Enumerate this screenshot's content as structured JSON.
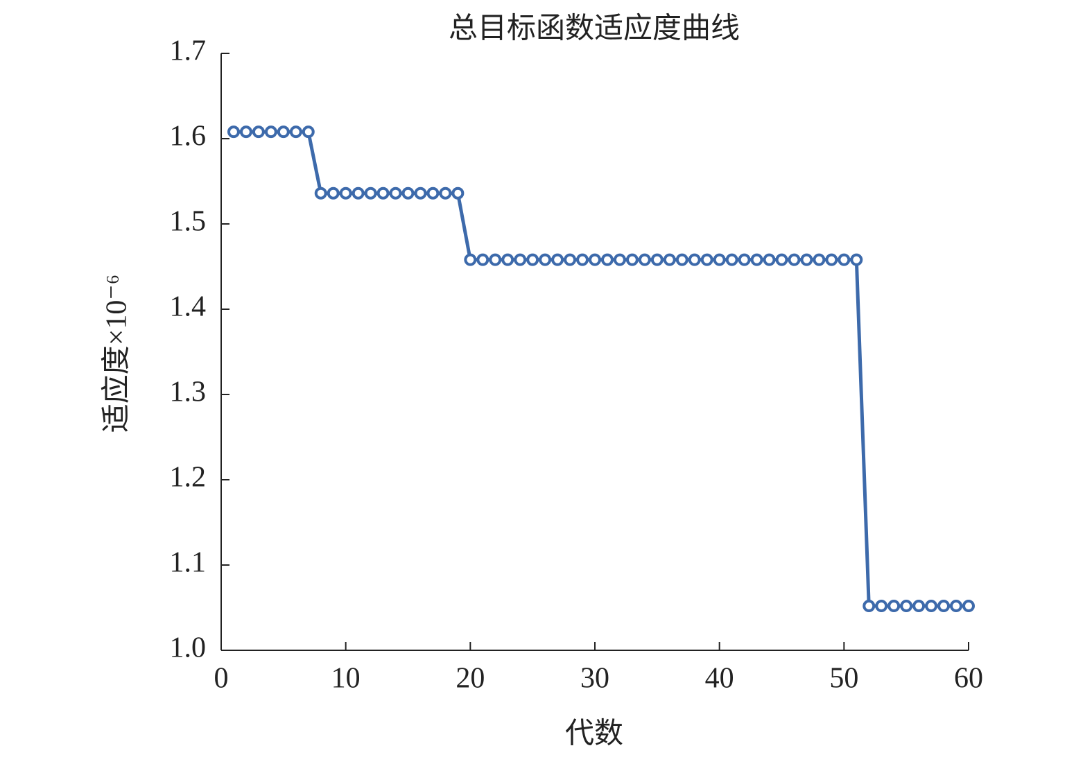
{
  "chart_data": {
    "type": "line",
    "title": "总目标函数适应度曲线",
    "x_label": "代数",
    "y_label": "适应度×10⁻⁶",
    "x": [
      1,
      2,
      3,
      4,
      5,
      6,
      7,
      8,
      9,
      10,
      11,
      12,
      13,
      14,
      15,
      16,
      17,
      18,
      19,
      20,
      21,
      22,
      23,
      24,
      25,
      26,
      27,
      28,
      29,
      30,
      31,
      32,
      33,
      34,
      35,
      36,
      37,
      38,
      39,
      40,
      41,
      42,
      43,
      44,
      45,
      46,
      47,
      48,
      49,
      50,
      51,
      52,
      53,
      54,
      55,
      56,
      57,
      58,
      59,
      60
    ],
    "series": [
      {
        "color": "#3d6aab",
        "values": [
          1.608,
          1.608,
          1.608,
          1.608,
          1.608,
          1.608,
          1.608,
          1.536,
          1.536,
          1.536,
          1.536,
          1.536,
          1.536,
          1.536,
          1.536,
          1.536,
          1.536,
          1.536,
          1.536,
          1.458,
          1.458,
          1.458,
          1.458,
          1.458,
          1.458,
          1.458,
          1.458,
          1.458,
          1.458,
          1.458,
          1.458,
          1.458,
          1.458,
          1.458,
          1.458,
          1.458,
          1.458,
          1.458,
          1.458,
          1.458,
          1.458,
          1.458,
          1.458,
          1.458,
          1.458,
          1.458,
          1.458,
          1.458,
          1.458,
          1.458,
          1.458,
          1.052,
          1.052,
          1.052,
          1.052,
          1.052,
          1.052,
          1.052,
          1.052,
          1.052
        ]
      }
    ],
    "xlim": [
      0,
      60
    ],
    "xticks": [
      0,
      10,
      20,
      30,
      40,
      50,
      60
    ],
    "ylim": [
      1,
      1.7
    ],
    "yticks": [
      {
        "value": 1,
        "label": "1.0"
      },
      1.1,
      1.2,
      1.3,
      1.4,
      1.5,
      1.6,
      1.7
    ]
  }
}
